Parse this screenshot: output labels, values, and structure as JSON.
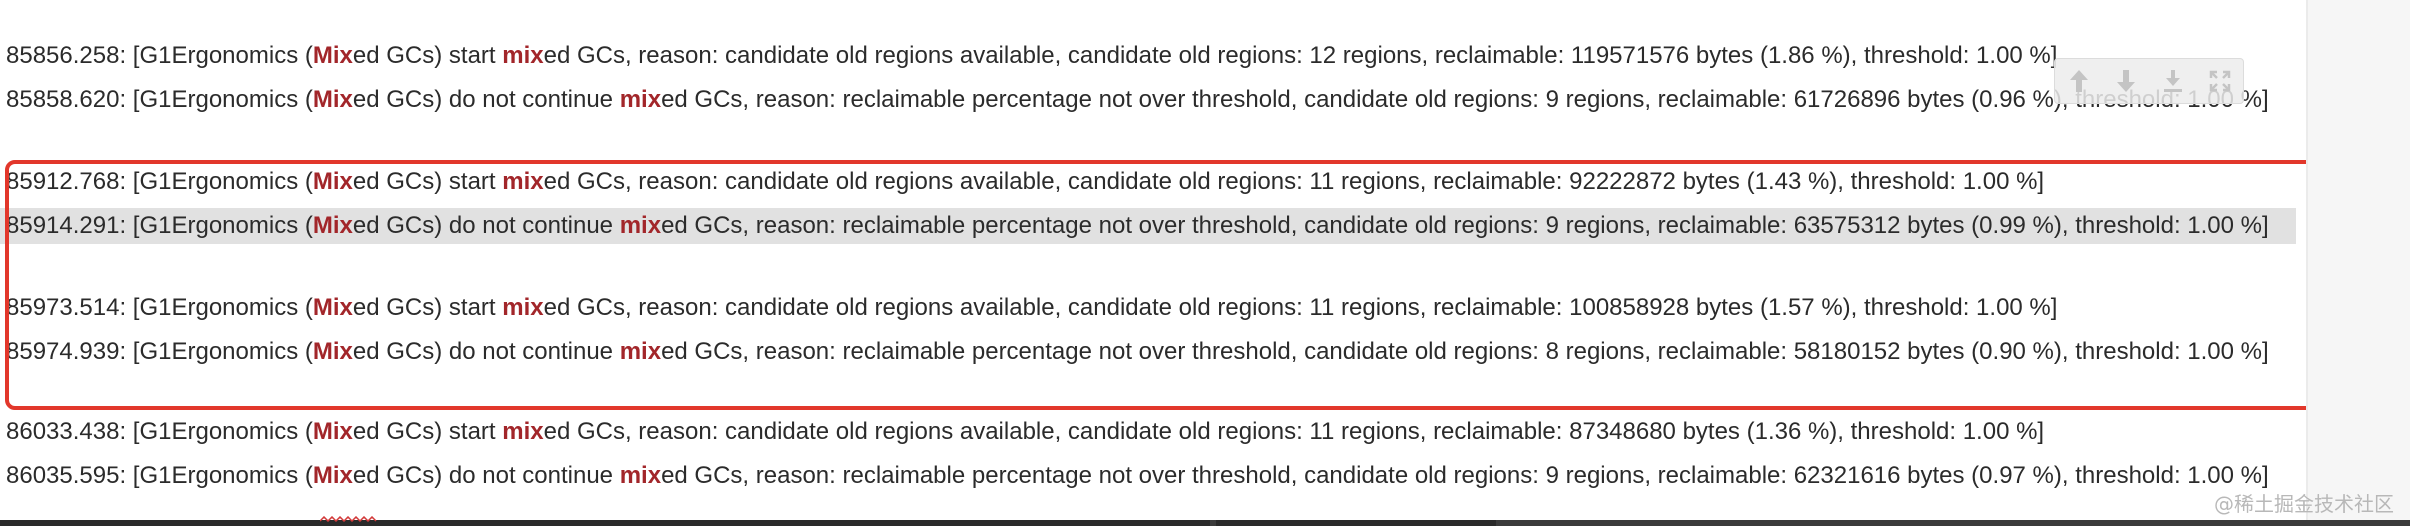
{
  "log": {
    "keyword_main": "Mix",
    "keyword_lower": "mix",
    "lines": [
      {
        "timestamp": "85856.258:",
        "prefix": " [G1Ergonomics (",
        "mid1": "ed GCs) start ",
        "rest": "ed GCs, reason: candidate old regions available, candidate old regions: 12 regions, reclaimable: 119571576 bytes (1.86 %), threshold: 1.00 %]",
        "highlighted": false
      },
      {
        "timestamp": "85858.620:",
        "prefix": " [G1Ergonomics (",
        "mid1": "ed GCs) do not continue ",
        "rest": "ed GCs, reason: reclaimable percentage not over threshold, candidate old regions: 9 regions, reclaimable: 61726896 bytes (0.96 %), threshold: 1.00 %]",
        "highlighted": false
      },
      {
        "timestamp": "85912.768:",
        "prefix": " [G1Ergonomics (",
        "mid1": "ed GCs) start ",
        "rest": "ed GCs, reason: candidate old regions available, candidate old regions: 11 regions, reclaimable: 92222872 bytes (1.43 %), threshold: 1.00 %]",
        "highlighted": false
      },
      {
        "timestamp": "85914.291:",
        "prefix": " [G1Ergonomics (",
        "mid1": "ed GCs) do not continue ",
        "rest": "ed GCs, reason: reclaimable percentage not over threshold, candidate old regions: 9 regions, reclaimable: 63575312 bytes (0.99 %), threshold: 1.00 %]",
        "highlighted": true
      },
      {
        "timestamp": "85973.514:",
        "prefix": " [G1Ergonomics (",
        "mid1": "ed GCs) start ",
        "rest": "ed GCs, reason: candidate old regions available, candidate old regions: 11 regions, reclaimable: 100858928 bytes (1.57 %), threshold: 1.00 %]",
        "highlighted": false
      },
      {
        "timestamp": "85974.939:",
        "prefix": " [G1Ergonomics (",
        "mid1": "ed GCs) do not continue ",
        "rest": "ed GCs, reason: reclaimable percentage not over threshold, candidate old regions: 8 regions, reclaimable: 58180152 bytes (0.90 %), threshold: 1.00 %]",
        "highlighted": false
      },
      {
        "timestamp": "86033.438:",
        "prefix": " [G1Ergonomics (",
        "mid1": "ed GCs) start ",
        "rest": "ed GCs, reason: candidate old regions available, candidate old regions: 11 regions, reclaimable: 87348680 bytes (1.36 %), threshold: 1.00 %]",
        "highlighted": false
      },
      {
        "timestamp": "86035.595:",
        "prefix": " [G1Ergonomics (",
        "mid1": "ed GCs) do not continue ",
        "rest": "ed GCs, reason: reclaimable percentage not over threshold, candidate old regions: 9 regions, reclaimable: 62321616 bytes (0.97 %), threshold: 1.00 %]",
        "highlighted": false
      }
    ]
  },
  "toolbar": {
    "icons": [
      "arrow-up-icon",
      "arrow-down-icon",
      "download-icon",
      "expand-icon"
    ]
  },
  "watermark": {
    "text": "@稀土掘金技术社区"
  },
  "colors": {
    "keyword": "#a2262a",
    "selection_border": "#e2372b",
    "highlight_row": "#e1e1e1",
    "text": "#2b2b2b"
  }
}
